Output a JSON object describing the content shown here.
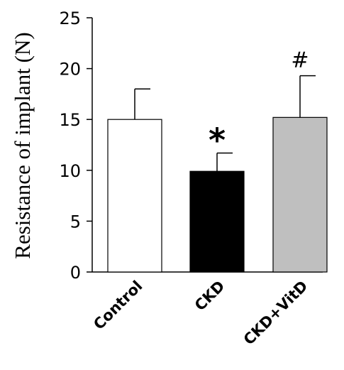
{
  "chart_data": {
    "type": "bar",
    "title": "",
    "xlabel": "",
    "ylabel": "Resistance of implant (N)",
    "ylim": [
      0,
      25
    ],
    "yticks": [
      0,
      5,
      10,
      15,
      20,
      25
    ],
    "grid": false,
    "legend": "none",
    "categories": [
      "Control",
      "CKD",
      "CKD+VitD"
    ],
    "values": [
      15.0,
      9.9,
      15.2
    ],
    "error_upper": [
      3.0,
      1.8,
      4.1
    ],
    "bar_colors": [
      "#ffffff",
      "#000000",
      "#bfbfbf"
    ],
    "annotations": [
      "",
      "*",
      "#"
    ]
  }
}
